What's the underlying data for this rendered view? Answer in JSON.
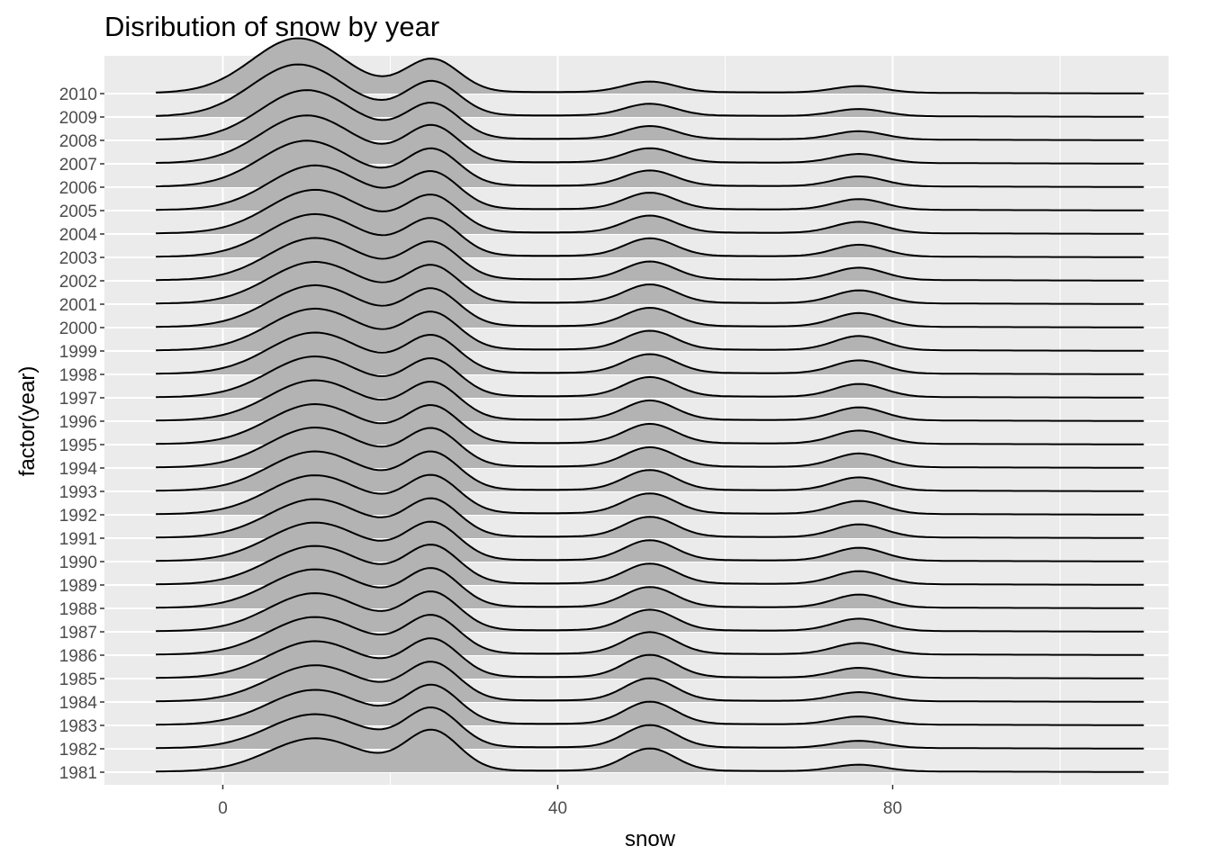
{
  "chart_data": {
    "type": "ridgeline",
    "title": "Disribution of snow by year",
    "xlabel": "snow",
    "ylabel": "factor(year)",
    "xlim": [
      -14,
      112
    ],
    "x_ticks": [
      0,
      40,
      80
    ],
    "x_tick_labels": [
      "0",
      "40",
      "80"
    ],
    "x_minor_gridlines": [
      20,
      60,
      100
    ],
    "density_support": [
      -8,
      110
    ],
    "grid": true,
    "background_color": "#ebebeb",
    "gridline_color": "#ffffff",
    "fill_color": "#b3b3b3",
    "line_color": "#000000",
    "categories": [
      "1981",
      "1982",
      "1983",
      "1984",
      "1985",
      "1986",
      "1987",
      "1988",
      "1989",
      "1990",
      "1991",
      "1992",
      "1993",
      "1994",
      "1995",
      "1996",
      "1997",
      "1998",
      "1999",
      "2000",
      "2001",
      "2002",
      "2003",
      "2004",
      "2005",
      "2006",
      "2007",
      "2008",
      "2009",
      "2010"
    ],
    "series": [
      {
        "year": "1981",
        "peaks": [
          {
            "x": 11,
            "h": 1.4
          },
          {
            "x": 25,
            "h": 1.7
          },
          {
            "x": 51,
            "h": 0.95
          },
          {
            "x": 76,
            "h": 0.28
          }
        ]
      },
      {
        "year": "1982",
        "peaks": [
          {
            "x": 11,
            "h": 1.43
          },
          {
            "x": 25,
            "h": 1.65
          },
          {
            "x": 51,
            "h": 0.95
          },
          {
            "x": 76,
            "h": 0.3
          }
        ]
      },
      {
        "year": "1983",
        "peaks": [
          {
            "x": 11,
            "h": 1.47
          },
          {
            "x": 25,
            "h": 1.62
          },
          {
            "x": 51,
            "h": 0.95
          },
          {
            "x": 76,
            "h": 0.34
          }
        ]
      },
      {
        "year": "1984",
        "peaks": [
          {
            "x": 11,
            "h": 1.52
          },
          {
            "x": 25,
            "h": 1.6
          },
          {
            "x": 51,
            "h": 0.95
          },
          {
            "x": 76,
            "h": 0.38
          }
        ]
      },
      {
        "year": "1985",
        "peaks": [
          {
            "x": 11,
            "h": 1.55
          },
          {
            "x": 25,
            "h": 1.6
          },
          {
            "x": 51,
            "h": 0.95
          },
          {
            "x": 76,
            "h": 0.42
          }
        ]
      },
      {
        "year": "1986",
        "peaks": [
          {
            "x": 11,
            "h": 1.58
          },
          {
            "x": 25,
            "h": 1.6
          },
          {
            "x": 51,
            "h": 0.92
          },
          {
            "x": 76,
            "h": 0.48
          }
        ]
      },
      {
        "year": "1987",
        "peaks": [
          {
            "x": 11,
            "h": 1.6
          },
          {
            "x": 25,
            "h": 1.6
          },
          {
            "x": 51,
            "h": 0.88
          },
          {
            "x": 76,
            "h": 0.52
          }
        ]
      },
      {
        "year": "1988",
        "peaks": [
          {
            "x": 11,
            "h": 1.62
          },
          {
            "x": 25,
            "h": 1.6
          },
          {
            "x": 51,
            "h": 0.85
          },
          {
            "x": 76,
            "h": 0.55
          }
        ]
      },
      {
        "year": "1989",
        "peaks": [
          {
            "x": 11,
            "h": 1.62
          },
          {
            "x": 25,
            "h": 1.6
          },
          {
            "x": 51,
            "h": 0.85
          },
          {
            "x": 76,
            "h": 0.55
          }
        ]
      },
      {
        "year": "1990",
        "peaks": [
          {
            "x": 11,
            "h": 1.62
          },
          {
            "x": 25,
            "h": 1.58
          },
          {
            "x": 51,
            "h": 0.85
          },
          {
            "x": 76,
            "h": 0.55
          }
        ]
      },
      {
        "year": "1991",
        "peaks": [
          {
            "x": 11,
            "h": 1.62
          },
          {
            "x": 25,
            "h": 1.58
          },
          {
            "x": 51,
            "h": 0.85
          },
          {
            "x": 76,
            "h": 0.55
          }
        ]
      },
      {
        "year": "1992",
        "peaks": [
          {
            "x": 11,
            "h": 1.64
          },
          {
            "x": 25,
            "h": 1.58
          },
          {
            "x": 51,
            "h": 0.85
          },
          {
            "x": 76,
            "h": 0.55
          }
        ]
      },
      {
        "year": "1993",
        "peaks": [
          {
            "x": 11,
            "h": 1.66
          },
          {
            "x": 25,
            "h": 1.58
          },
          {
            "x": 51,
            "h": 0.85
          },
          {
            "x": 76,
            "h": 0.56
          }
        ]
      },
      {
        "year": "1994",
        "peaks": [
          {
            "x": 11,
            "h": 1.68
          },
          {
            "x": 25,
            "h": 1.58
          },
          {
            "x": 51,
            "h": 0.82
          },
          {
            "x": 76,
            "h": 0.58
          }
        ]
      },
      {
        "year": "1995",
        "peaks": [
          {
            "x": 11,
            "h": 1.68
          },
          {
            "x": 25,
            "h": 1.56
          },
          {
            "x": 51,
            "h": 0.82
          },
          {
            "x": 76,
            "h": 0.56
          }
        ]
      },
      {
        "year": "1996",
        "peaks": [
          {
            "x": 11,
            "h": 1.7
          },
          {
            "x": 25,
            "h": 1.56
          },
          {
            "x": 51,
            "h": 0.82
          },
          {
            "x": 76,
            "h": 0.55
          }
        ]
      },
      {
        "year": "1997",
        "peaks": [
          {
            "x": 11,
            "h": 1.72
          },
          {
            "x": 25,
            "h": 1.56
          },
          {
            "x": 51,
            "h": 0.82
          },
          {
            "x": 76,
            "h": 0.55
          }
        ]
      },
      {
        "year": "1998",
        "peaks": [
          {
            "x": 11,
            "h": 1.74
          },
          {
            "x": 25,
            "h": 1.56
          },
          {
            "x": 51,
            "h": 0.8
          },
          {
            "x": 76,
            "h": 0.56
          }
        ]
      },
      {
        "year": "1999",
        "peaks": [
          {
            "x": 11,
            "h": 1.76
          },
          {
            "x": 25,
            "h": 1.55
          },
          {
            "x": 51,
            "h": 0.8
          },
          {
            "x": 76,
            "h": 0.6
          }
        ]
      },
      {
        "year": "2000",
        "peaks": [
          {
            "x": 11,
            "h": 1.76
          },
          {
            "x": 25,
            "h": 1.55
          },
          {
            "x": 51,
            "h": 0.78
          },
          {
            "x": 76,
            "h": 0.58
          }
        ]
      },
      {
        "year": "2001",
        "peaks": [
          {
            "x": 11,
            "h": 1.76
          },
          {
            "x": 25,
            "h": 1.55
          },
          {
            "x": 51,
            "h": 0.78
          },
          {
            "x": 76,
            "h": 0.55
          }
        ]
      },
      {
        "year": "2002",
        "peaks": [
          {
            "x": 11,
            "h": 1.78
          },
          {
            "x": 25,
            "h": 1.55
          },
          {
            "x": 51,
            "h": 0.76
          },
          {
            "x": 76,
            "h": 0.52
          }
        ]
      },
      {
        "year": "2003",
        "peaks": [
          {
            "x": 11,
            "h": 1.8
          },
          {
            "x": 25,
            "h": 1.55
          },
          {
            "x": 51,
            "h": 0.75
          },
          {
            "x": 76,
            "h": 0.5
          }
        ]
      },
      {
        "year": "2004",
        "peaks": [
          {
            "x": 11,
            "h": 1.84
          },
          {
            "x": 25,
            "h": 1.55
          },
          {
            "x": 51,
            "h": 0.72
          },
          {
            "x": 76,
            "h": 0.48
          }
        ]
      },
      {
        "year": "2005",
        "peaks": [
          {
            "x": 11,
            "h": 1.88
          },
          {
            "x": 25,
            "h": 1.55
          },
          {
            "x": 51,
            "h": 0.7
          },
          {
            "x": 76,
            "h": 0.45
          }
        ]
      },
      {
        "year": "2006",
        "peaks": [
          {
            "x": 10,
            "h": 1.94
          },
          {
            "x": 25,
            "h": 1.55
          },
          {
            "x": 51,
            "h": 0.65
          },
          {
            "x": 76,
            "h": 0.42
          }
        ]
      },
      {
        "year": "2007",
        "peaks": [
          {
            "x": 10,
            "h": 2.02
          },
          {
            "x": 25,
            "h": 1.55
          },
          {
            "x": 51,
            "h": 0.6
          },
          {
            "x": 76,
            "h": 0.38
          }
        ]
      },
      {
        "year": "2008",
        "peaks": [
          {
            "x": 10,
            "h": 2.1
          },
          {
            "x": 25,
            "h": 1.5
          },
          {
            "x": 51,
            "h": 0.55
          },
          {
            "x": 76,
            "h": 0.35
          }
        ]
      },
      {
        "year": "2009",
        "peaks": [
          {
            "x": 9,
            "h": 2.2
          },
          {
            "x": 25,
            "h": 1.45
          },
          {
            "x": 51,
            "h": 0.5
          },
          {
            "x": 76,
            "h": 0.3
          }
        ]
      },
      {
        "year": "2010",
        "peaks": [
          {
            "x": 9,
            "h": 2.32
          },
          {
            "x": 25,
            "h": 1.4
          },
          {
            "x": 51,
            "h": 0.45
          },
          {
            "x": 76,
            "h": 0.28
          }
        ]
      }
    ]
  }
}
